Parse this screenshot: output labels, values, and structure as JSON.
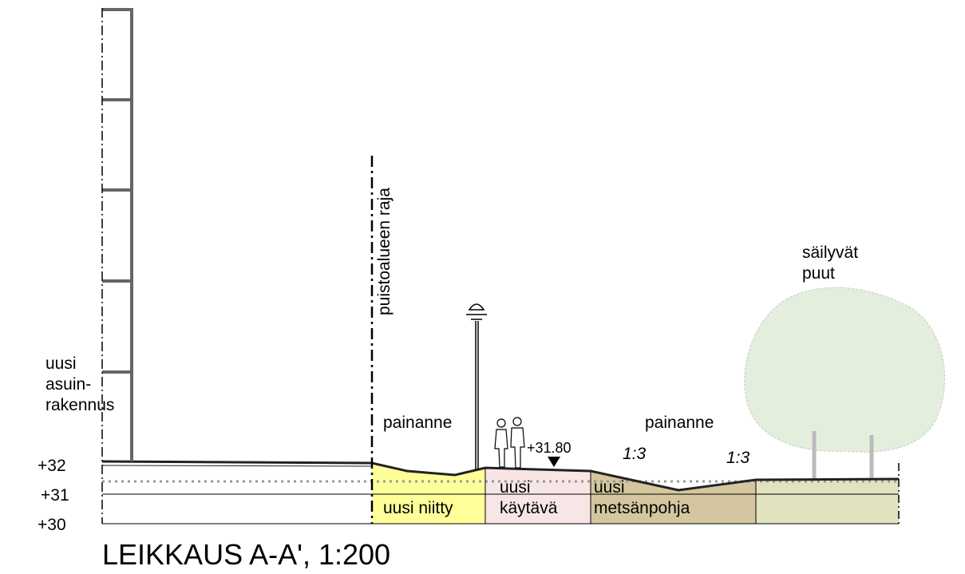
{
  "title": "LEIKKAUS A-A', 1:200",
  "levels": [
    "+32",
    "+31",
    "+30"
  ],
  "building_label": [
    "uusi",
    "asuin-",
    "rakennus"
  ],
  "boundary_label": "puistoalueen raja",
  "depression_labels": [
    "painanne",
    "painanne"
  ],
  "elevation_label": "+31.80",
  "slope_labels": [
    "1:3",
    "1:3"
  ],
  "trees_label": [
    "säilyvät",
    "puut"
  ],
  "zones": [
    {
      "lines": [
        "uusi niitty"
      ]
    },
    {
      "lines": [
        "uusi",
        "käytävä"
      ]
    },
    {
      "lines": [
        "uusi",
        "metsänpohja"
      ]
    }
  ]
}
